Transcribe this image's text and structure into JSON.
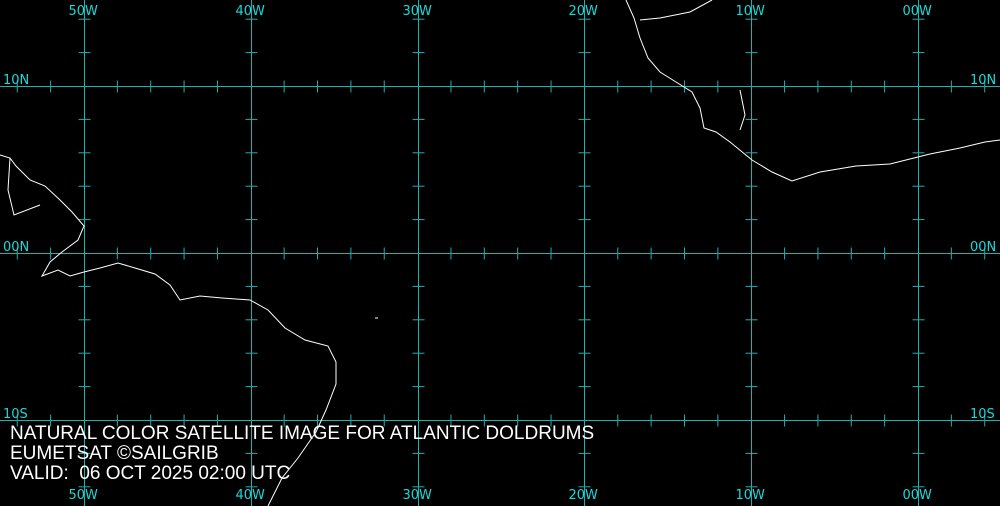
{
  "map": {
    "lon_range": [
      -55,
      5
    ],
    "lat_range": [
      15,
      -15
    ],
    "grid_step_deg": 10,
    "tick_step_deg": 2,
    "grid_color": "#1fb0b0",
    "label_color": "#19d9d9",
    "coast_color": "#ffffff",
    "lon_labels": [
      {
        "lon": -50,
        "text": "50W"
      },
      {
        "lon": -40,
        "text": "40W"
      },
      {
        "lon": -30,
        "text": "30W"
      },
      {
        "lon": -20,
        "text": "20W"
      },
      {
        "lon": -10,
        "text": "10W"
      },
      {
        "lon": 0,
        "text": "00W"
      }
    ],
    "lat_labels": [
      {
        "lat": 10,
        "text": "10N"
      },
      {
        "lat": 0,
        "text": "00N"
      },
      {
        "lat": -10,
        "text": "10S"
      }
    ]
  },
  "caption": {
    "line1": "NATURAL COLOR SATELLITE IMAGE FOR ATLANTIC DOLDRUMS",
    "line2": "EUMETSAT ©SAILGRIB",
    "line3": "VALID:  06 OCT 2025 02:00 UTC"
  }
}
